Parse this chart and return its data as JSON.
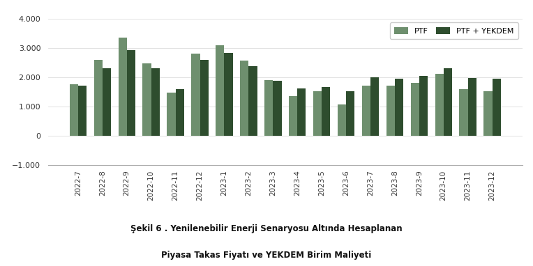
{
  "categories": [
    "2022-7",
    "2022-8",
    "2022-9",
    "2022-10",
    "2022-11",
    "2022-12",
    "2023-1",
    "2023-2",
    "2023-3",
    "2023-4",
    "2023-5",
    "2023-6",
    "2023-7",
    "2023-8",
    "2023-9",
    "2023-10",
    "2023-11",
    "2023-12"
  ],
  "ptf": [
    1750,
    2600,
    3350,
    2480,
    1480,
    2800,
    3100,
    2560,
    1900,
    1360,
    1510,
    1060,
    1700,
    1720,
    1800,
    2110,
    1580,
    1530
  ],
  "ptf_yekdem": [
    1700,
    2300,
    2930,
    2300,
    1600,
    2600,
    2820,
    2380,
    1870,
    1610,
    1670,
    1520,
    2000,
    1950,
    2050,
    2310,
    1980,
    1950
  ],
  "color_ptf": "#6e8f6e",
  "color_ptf_yekdem": "#2e4d2e",
  "ylim_min": -1000,
  "ylim_max": 4000,
  "yticks": [
    -1000,
    0,
    1000,
    2000,
    3000,
    4000
  ],
  "legend_labels": [
    "PTF",
    "PTF + YEKDEM"
  ],
  "caption_line1": "Şekil 6 . Yenilenebilir Enerji Senaryosu Altında Hesaplanan",
  "caption_line2": "Piyasa Takas Fiyatı ve YEKDEM Birim Maliyeti",
  "bar_width": 0.35,
  "background_color": "#ffffff",
  "grid_color": "#dddddd"
}
